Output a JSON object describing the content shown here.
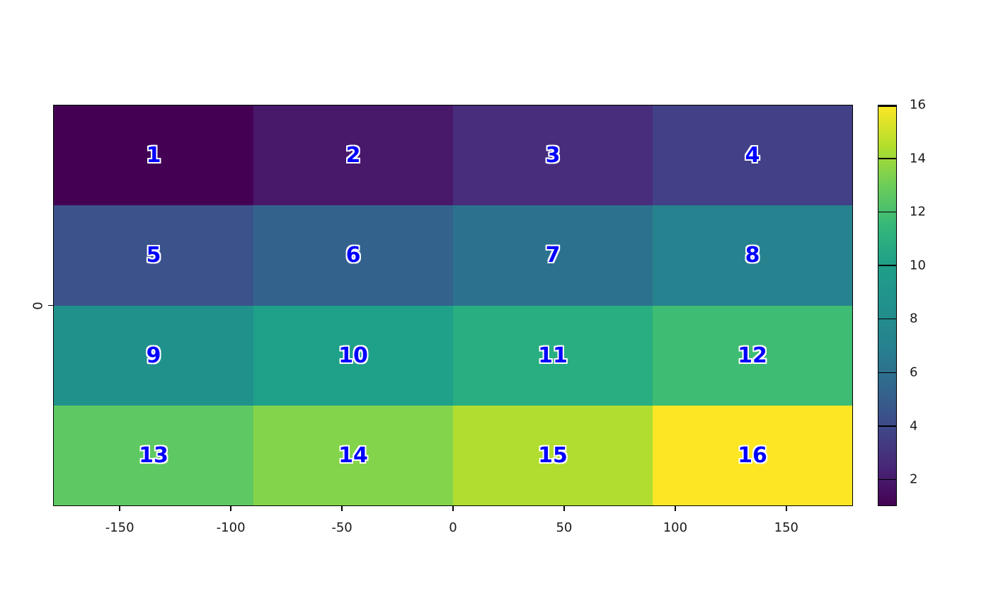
{
  "figure": {
    "background": "#ffffff",
    "cell_label_color": "#0000ff",
    "cell_label_outline": "#ffffff",
    "axis_color": "#000000"
  },
  "chart_data": {
    "type": "heatmap",
    "title": "",
    "xlabel": "",
    "ylabel": "",
    "grid": {
      "rows": 4,
      "cols": 4
    },
    "x": {
      "range": [
        -180,
        180
      ],
      "ticks": [
        -150,
        -100,
        -50,
        0,
        50,
        100,
        150
      ]
    },
    "y": {
      "ticks": [
        0
      ]
    },
    "cells": [
      {
        "value": 1,
        "row": 0,
        "col": 0,
        "color": "#440154"
      },
      {
        "value": 2,
        "row": 0,
        "col": 1,
        "color": "#48186A"
      },
      {
        "value": 3,
        "row": 0,
        "col": 2,
        "color": "#472D7B"
      },
      {
        "value": 4,
        "row": 0,
        "col": 3,
        "color": "#424086"
      },
      {
        "value": 5,
        "row": 1,
        "col": 0,
        "color": "#3B528B"
      },
      {
        "value": 6,
        "row": 1,
        "col": 1,
        "color": "#33638D"
      },
      {
        "value": 7,
        "row": 1,
        "col": 2,
        "color": "#2C728E"
      },
      {
        "value": 8,
        "row": 1,
        "col": 3,
        "color": "#26828E"
      },
      {
        "value": 9,
        "row": 2,
        "col": 0,
        "color": "#21918C"
      },
      {
        "value": 10,
        "row": 2,
        "col": 1,
        "color": "#1FA088"
      },
      {
        "value": 11,
        "row": 2,
        "col": 2,
        "color": "#28AE80"
      },
      {
        "value": 12,
        "row": 2,
        "col": 3,
        "color": "#3FBC73"
      },
      {
        "value": 13,
        "row": 3,
        "col": 0,
        "color": "#5EC962"
      },
      {
        "value": 14,
        "row": 3,
        "col": 1,
        "color": "#84D44B"
      },
      {
        "value": 15,
        "row": 3,
        "col": 2,
        "color": "#B0DD2F"
      },
      {
        "value": 16,
        "row": 3,
        "col": 3,
        "color": "#FDE725"
      }
    ],
    "colorbar": {
      "min": 1,
      "max": 16,
      "ticks": [
        2,
        4,
        6,
        8,
        10,
        12,
        14,
        16
      ],
      "gradient_bottom_to_top": [
        "#440154",
        "#482878",
        "#3E4A89",
        "#31688E",
        "#26828E",
        "#21918C",
        "#1F9E89",
        "#35B779",
        "#6DCD59",
        "#B4DE2C",
        "#FDE725"
      ],
      "position": "right"
    },
    "legend": null
  }
}
